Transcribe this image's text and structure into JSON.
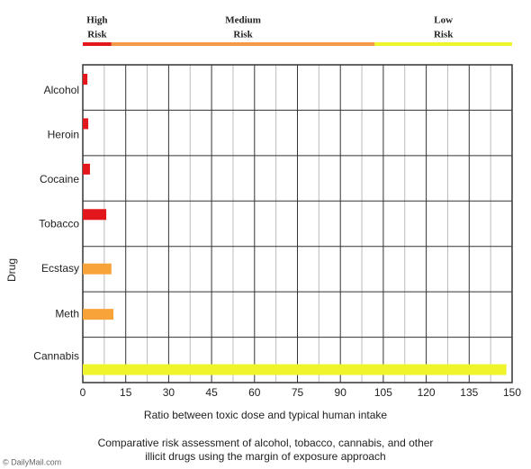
{
  "chart_data": {
    "type": "barh",
    "categories": [
      "Alcohol",
      "Heroin",
      "Cocaine",
      "Tobacco",
      "Ecstasy",
      "Meth",
      "Cannabis"
    ],
    "values": [
      1.6,
      1.9,
      2.5,
      8.2,
      10,
      10.7,
      148
    ],
    "colors": [
      "#e3161c",
      "#e3161c",
      "#e3161c",
      "#e3161c",
      "#f7a33a",
      "#f7a33a",
      "#eef52a"
    ],
    "xlim": [
      0,
      150
    ],
    "xticks": [
      0,
      15,
      30,
      45,
      60,
      75,
      90,
      105,
      120,
      135,
      150
    ],
    "x_minor_ticks": [
      7.5,
      22.5,
      37.5,
      52.5,
      67.5,
      82.5,
      97.5,
      112.5,
      127.5,
      142.5
    ],
    "grid": true,
    "xlabel": "Ratio between toxic dose and typical human intake",
    "ylabel": "Drug",
    "risk_bands": [
      {
        "label_lines": [
          "High",
          "Risk"
        ],
        "start": 0,
        "end": 10,
        "color": "#e3161c"
      },
      {
        "label_lines": [
          "Medium",
          "Risk"
        ],
        "start": 10,
        "end": 102,
        "color": "#f29a45"
      },
      {
        "label_lines": [
          "Low",
          "Risk"
        ],
        "start": 102,
        "end": 150,
        "color": "#eef52a"
      }
    ],
    "caption_lines": [
      "Comparative risk assessment of alcohol, tobacco, cannabis, and other",
      "illicit drugs using the margin of exposure approach"
    ],
    "source": "© DailyMail.com"
  }
}
